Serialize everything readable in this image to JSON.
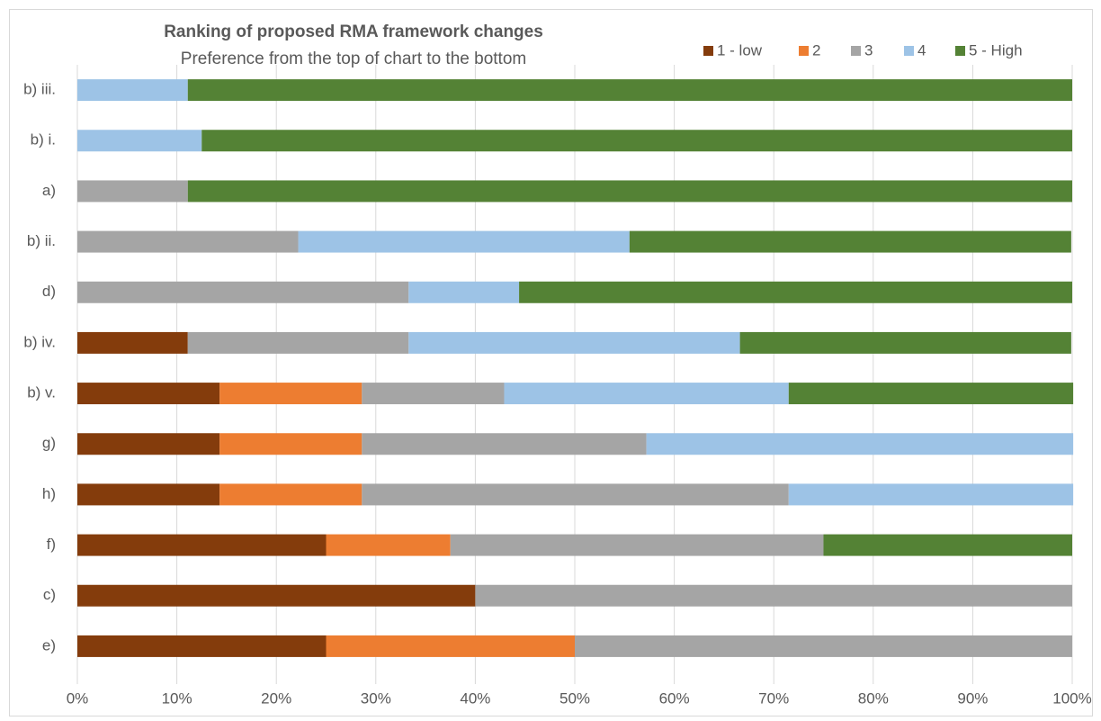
{
  "chart_data": {
    "type": "bar",
    "orientation": "horizontal",
    "stacked": true,
    "title": "Ranking of proposed RMA framework changes",
    "subtitle": "Preference from the top of chart to the bottom",
    "categories": [
      "b) iii.",
      "b) i.",
      "a)",
      "b) ii.",
      "d)",
      "b) iv.",
      "b) v.",
      "g)",
      "h)",
      "f)",
      "c)",
      "e)"
    ],
    "series": [
      {
        "name": "1 - low",
        "color": "#843c0c",
        "values": [
          0,
          0,
          0,
          0,
          0,
          11.1,
          14.3,
          14.3,
          14.3,
          25,
          40,
          25
        ]
      },
      {
        "name": "2",
        "color": "#ed7d31",
        "values": [
          0,
          0,
          0,
          0,
          0,
          0,
          14.3,
          14.3,
          14.3,
          12.5,
          0,
          25
        ]
      },
      {
        "name": "3",
        "color": "#a5a5a5",
        "values": [
          0,
          0,
          11.1,
          22.2,
          33.3,
          22.2,
          14.3,
          28.6,
          42.9,
          37.5,
          60,
          50
        ]
      },
      {
        "name": "4",
        "color": "#9dc3e6",
        "values": [
          11.1,
          12.5,
          0,
          33.3,
          11.1,
          33.3,
          28.6,
          42.9,
          28.6,
          0,
          0,
          0
        ]
      },
      {
        "name": "5 - High",
        "color": "#548235",
        "values": [
          88.9,
          87.5,
          88.9,
          44.4,
          55.6,
          33.3,
          28.6,
          0,
          0,
          25,
          0,
          0
        ]
      }
    ],
    "xlim": [
      0,
      100
    ],
    "xticks": [
      {
        "value": 0,
        "label": "0%"
      },
      {
        "value": 10,
        "label": "10%"
      },
      {
        "value": 20,
        "label": "20%"
      },
      {
        "value": 30,
        "label": "30%"
      },
      {
        "value": 40,
        "label": "40%"
      },
      {
        "value": 50,
        "label": "50%"
      },
      {
        "value": 60,
        "label": "60%"
      },
      {
        "value": 70,
        "label": "70%"
      },
      {
        "value": 80,
        "label": "80%"
      },
      {
        "value": 90,
        "label": "90%"
      },
      {
        "value": 100,
        "label": "100%"
      }
    ],
    "grid": true,
    "legend": "top-right"
  }
}
